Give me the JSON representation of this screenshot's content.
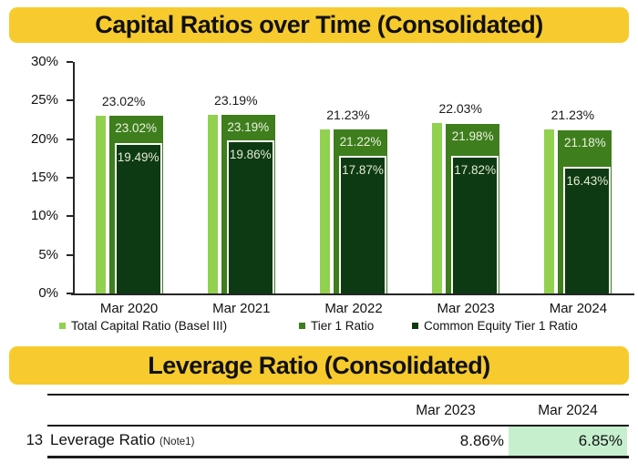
{
  "titles": {
    "capital": "Capital Ratios over Time (Consolidated)",
    "leverage": "Leverage Ratio (Consolidated)"
  },
  "colors": {
    "title_bg": "#F7CB2D",
    "axis": "#262626",
    "highlight_cell": "#C6EFCE",
    "bar_label_light": "#ECF2E0",
    "bar_label_pale": "#E3ECD2"
  },
  "chart_data": {
    "type": "bar",
    "title": "Capital Ratios over Time (Consolidated)",
    "categories": [
      "Mar 2020",
      "Mar 2021",
      "Mar 2022",
      "Mar 2023",
      "Mar 2024"
    ],
    "series": [
      {
        "name": "Total Capital Ratio (Basel III)",
        "color": "#92D050",
        "values": [
          23.02,
          23.19,
          21.23,
          22.03,
          21.23
        ]
      },
      {
        "name": "Tier 1 Ratio",
        "color": "#3E7E1D",
        "values": [
          23.02,
          23.19,
          21.22,
          21.98,
          21.18
        ]
      },
      {
        "name": "Common Equity Tier 1 Ratio",
        "color": "#0D3A12",
        "values": [
          19.49,
          19.86,
          17.87,
          17.82,
          16.43
        ]
      }
    ],
    "xlabel": "",
    "ylabel": "",
    "ylim": [
      0,
      30
    ],
    "ytick_step": 5,
    "ytick_suffix": "%",
    "grid": false,
    "legend_position": "bottom",
    "value_label_suffix": "%"
  },
  "table": {
    "headers": [
      "Mar 2023",
      "Mar 2024"
    ],
    "rows": [
      {
        "num": "13",
        "label": "Leverage Ratio",
        "note": "(Note1)",
        "values": [
          "8.86%",
          "6.85%"
        ],
        "highlight_col": 1
      }
    ]
  }
}
